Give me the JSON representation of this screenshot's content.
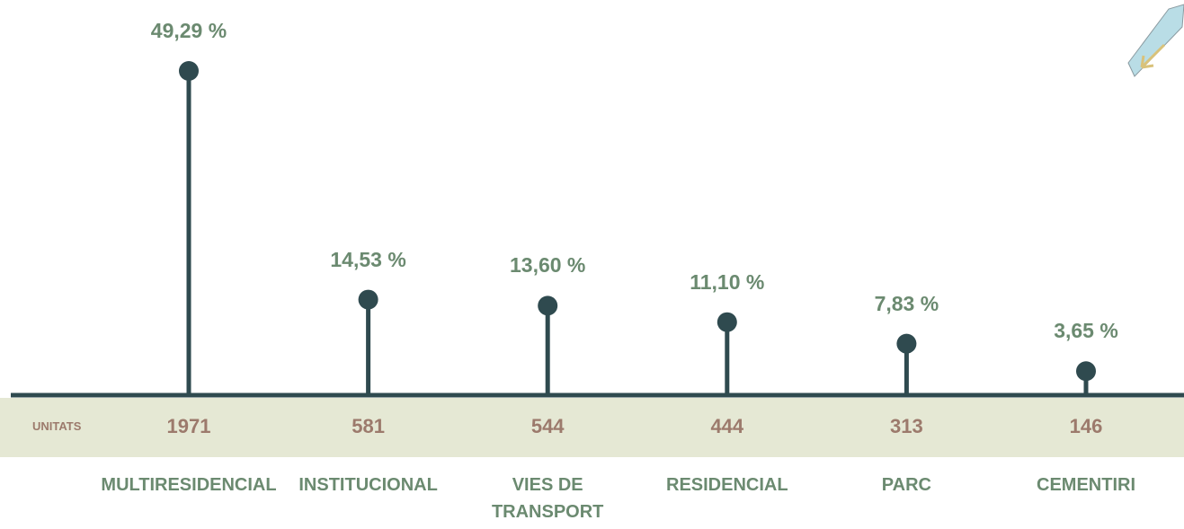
{
  "chart_data": {
    "type": "lollipop",
    "categories": [
      "MULTIRESIDENCIAL",
      "INSTITUCIONAL",
      "VIES DE TRANSPORT",
      "RESIDENCIAL",
      "PARC",
      "CEMENTIRI"
    ],
    "values": [
      49.29,
      14.53,
      13.6,
      11.1,
      7.83,
      3.65
    ],
    "value_labels": [
      "49,29 %",
      "14,53 %",
      "13,60 %",
      "11,10 %",
      "7,83 %",
      "3,65 %"
    ],
    "units_label": "UNITATS",
    "units": [
      1971,
      581,
      544,
      444,
      313,
      146
    ],
    "color": "#2f4a4f"
  }
}
